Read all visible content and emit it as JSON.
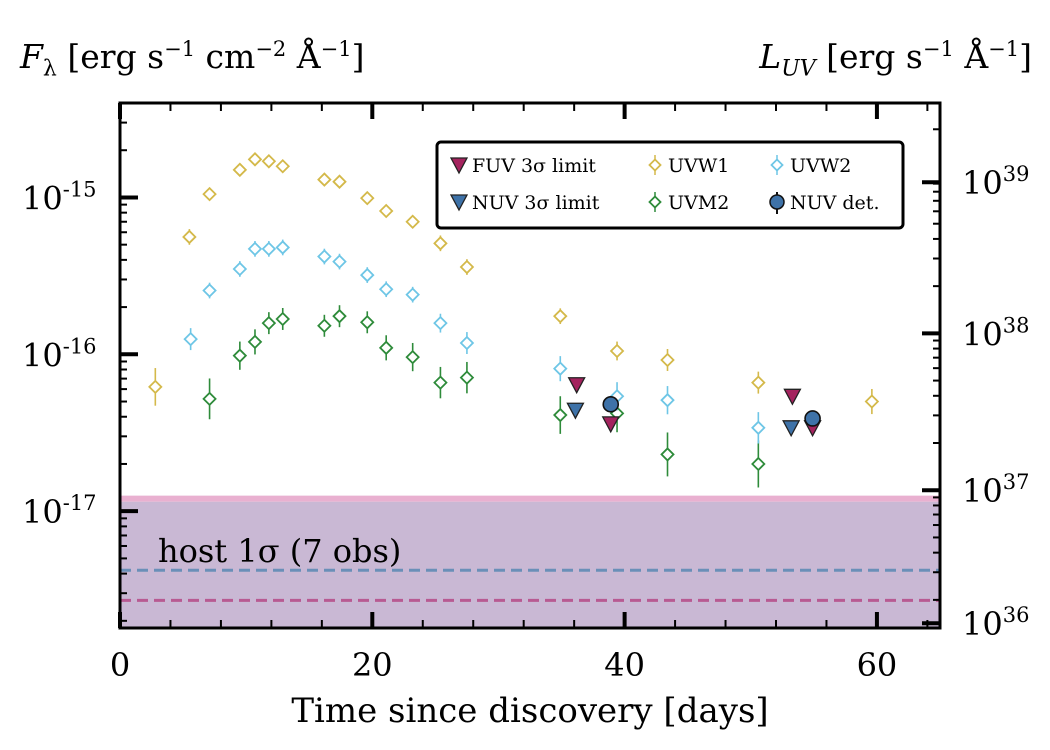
{
  "chart_data": {
    "type": "scatter",
    "title": "",
    "xlabel": "Time since discovery [days]",
    "ylabel_left": {
      "sym": "F",
      "sub": "λ",
      "unit": "[erg s",
      "e1": "−1",
      "mid": " cm",
      "e2": "−2",
      "mid2": " Å",
      "e3": "−1",
      "end": "]"
    },
    "ylabel_right": {
      "sym": "L",
      "sub": "UV",
      "unit": "[erg s",
      "e1": "−1",
      "mid": " Å",
      "e2": "−1",
      "end": "]"
    },
    "xlim": [
      0,
      65
    ],
    "ylim": [
      1.8e-18,
      4e-15
    ],
    "x_ticks": [
      "0",
      "20",
      "40",
      "60"
    ],
    "y_left_ticks": [
      {
        "base": "10",
        "exp": "-15",
        "value": 1e-15
      },
      {
        "base": "10",
        "exp": "-16",
        "value": 1e-16
      },
      {
        "base": "10",
        "exp": "-17",
        "value": 1e-17
      }
    ],
    "y_right_ticks": [
      {
        "base": "10",
        "exp": "39",
        "value": 1.25e-15
      },
      {
        "base": "10",
        "exp": "38",
        "value": 1.36e-16
      },
      {
        "base": "10",
        "exp": "37",
        "value": 1.36e-17
      },
      {
        "base": "10",
        "exp": "36",
        "value": 1.93e-18
      }
    ],
    "colors": {
      "UVW1": "#d4b94a",
      "UVM2": "#2e8b3a",
      "UVW2": "#6ec6e6",
      "FUV": "#a4235e",
      "NUV": "#3e72a8",
      "host_fill": "#c9b8d4",
      "host_edge": "#e7a8cc",
      "host_nuv_line": "#6a8fb8",
      "host_fuv_line": "#b85a92"
    },
    "host": {
      "label": "host 1σ (7 obs)",
      "upper": 1.15e-17,
      "nuv_level": 4.2e-18,
      "fuv_level": 2.7e-18
    },
    "series": [
      {
        "name": "UVW1",
        "marker": "diamond",
        "points": [
          [
            2.8,
            6.2e-17,
            0.12
          ],
          [
            5.5,
            5.6e-16,
            0.05
          ],
          [
            7.1,
            1.05e-15,
            0.04
          ],
          [
            9.5,
            1.5e-15,
            0.04
          ],
          [
            10.7,
            1.75e-15,
            0.04
          ],
          [
            11.8,
            1.7e-15,
            0.04
          ],
          [
            12.9,
            1.58e-15,
            0.04
          ],
          [
            16.2,
            1.3e-15,
            0.04
          ],
          [
            17.4,
            1.26e-15,
            0.04
          ],
          [
            19.6,
            9.9e-16,
            0.04
          ],
          [
            21.1,
            8.2e-16,
            0.04
          ],
          [
            23.2,
            7e-16,
            0.04
          ],
          [
            25.4,
            5.1e-16,
            0.05
          ],
          [
            27.5,
            3.6e-16,
            0.05
          ],
          [
            34.9,
            1.75e-16,
            0.05
          ],
          [
            39.4,
            1.05e-16,
            0.06
          ],
          [
            43.4,
            9.2e-17,
            0.07
          ],
          [
            50.6,
            6.6e-17,
            0.07
          ],
          [
            59.6,
            5e-17,
            0.08
          ]
        ]
      },
      {
        "name": "UVM2",
        "marker": "diamond",
        "points": [
          [
            7.1,
            5.2e-17,
            0.13
          ],
          [
            9.5,
            9.8e-17,
            0.09
          ],
          [
            10.7,
            1.2e-16,
            0.08
          ],
          [
            11.8,
            1.58e-16,
            0.07
          ],
          [
            12.9,
            1.68e-16,
            0.07
          ],
          [
            16.2,
            1.52e-16,
            0.07
          ],
          [
            17.4,
            1.75e-16,
            0.07
          ],
          [
            19.6,
            1.6e-16,
            0.07
          ],
          [
            21.1,
            1.1e-16,
            0.08
          ],
          [
            23.2,
            9.6e-17,
            0.09
          ],
          [
            25.4,
            6.6e-17,
            0.1
          ],
          [
            27.5,
            7.1e-17,
            0.1
          ],
          [
            34.9,
            4.1e-17,
            0.12
          ],
          [
            39.4,
            4.2e-17,
            0.12
          ],
          [
            43.4,
            2.3e-17,
            0.14
          ],
          [
            50.6,
            2e-17,
            0.15
          ]
        ]
      },
      {
        "name": "UVW2",
        "marker": "diamond",
        "points": [
          [
            5.6,
            1.25e-16,
            0.07
          ],
          [
            7.1,
            2.55e-16,
            0.05
          ],
          [
            9.5,
            3.5e-16,
            0.05
          ],
          [
            10.7,
            4.7e-16,
            0.05
          ],
          [
            11.8,
            4.7e-16,
            0.05
          ],
          [
            12.9,
            4.8e-16,
            0.05
          ],
          [
            16.2,
            4.2e-16,
            0.05
          ],
          [
            17.4,
            3.9e-16,
            0.05
          ],
          [
            19.6,
            3.2e-16,
            0.05
          ],
          [
            21.1,
            2.6e-16,
            0.05
          ],
          [
            23.2,
            2.4e-16,
            0.05
          ],
          [
            25.4,
            1.58e-16,
            0.06
          ],
          [
            27.5,
            1.18e-16,
            0.07
          ],
          [
            34.9,
            8.1e-17,
            0.08
          ],
          [
            39.4,
            5.4e-17,
            0.09
          ],
          [
            43.4,
            5.1e-17,
            0.09
          ],
          [
            50.6,
            3.4e-17,
            0.1
          ]
        ]
      },
      {
        "name": "FUV 3σ limit",
        "key": "FUV",
        "marker": "triangle-down",
        "points": [
          [
            36.2,
            6.4e-17
          ],
          [
            38.9,
            3.6e-17
          ],
          [
            53.3,
            5.4e-17
          ],
          [
            54.9,
            3.4e-17
          ]
        ]
      },
      {
        "name": "NUV 3σ limit",
        "key": "NUV",
        "marker": "triangle-down",
        "points": [
          [
            36.1,
            4.4e-17
          ],
          [
            53.2,
            3.4e-17
          ]
        ]
      },
      {
        "name": "NUV det.",
        "key": "NUV",
        "marker": "circle",
        "points": [
          [
            38.9,
            4.8e-17,
            0.03
          ],
          [
            54.9,
            3.9e-17,
            0.03
          ]
        ]
      }
    ],
    "legend": {
      "position": "top-right",
      "entries": [
        "FUV 3σ limit",
        "UVW1",
        "UVW2",
        "NUV 3σ limit",
        "UVM2",
        "NUV det."
      ]
    }
  }
}
